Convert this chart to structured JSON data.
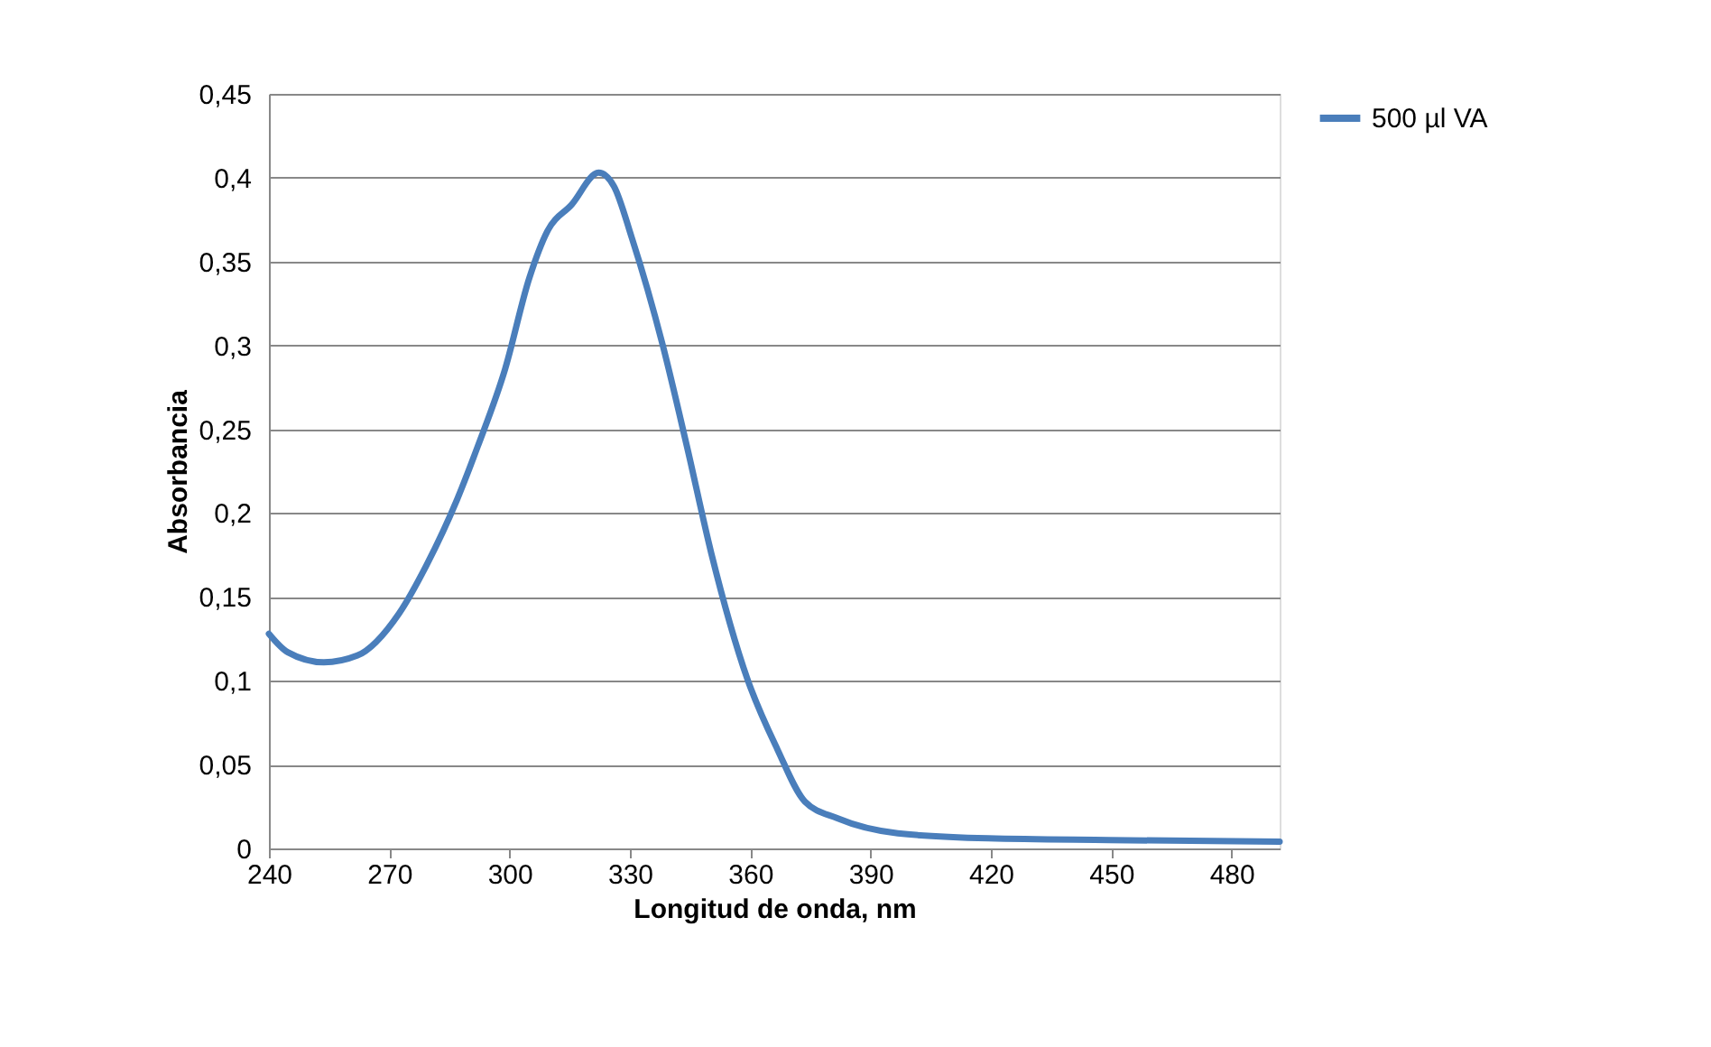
{
  "chart_data": {
    "type": "line",
    "xlabel": "Longitud de onda, nm",
    "ylabel": "Absorbancia",
    "xlim": [
      240,
      492
    ],
    "xticks": [
      240,
      270,
      300,
      330,
      360,
      390,
      420,
      450,
      480
    ],
    "ylim": [
      0,
      0.45
    ],
    "yticks": [
      {
        "value": 0,
        "label": "0"
      },
      {
        "value": 0.05,
        "label": "0,05"
      },
      {
        "value": 0.1,
        "label": "0,1"
      },
      {
        "value": 0.15,
        "label": "0,15"
      },
      {
        "value": 0.2,
        "label": "0,2"
      },
      {
        "value": 0.25,
        "label": "0,25"
      },
      {
        "value": 0.3,
        "label": "0,3"
      },
      {
        "value": 0.35,
        "label": "0,35"
      },
      {
        "value": 0.4,
        "label": "0,4"
      },
      {
        "value": 0.45,
        "label": "0,45"
      }
    ],
    "grid": "y",
    "legend": "right",
    "marker": "none",
    "line_style": "solid",
    "series": [
      {
        "name": "500 µl VA",
        "color": "#4a7ebb",
        "x": [
          240,
          244.7,
          253.7,
          262,
          272.4,
          279.3,
          286.9,
          292.1,
          298.9,
          304.9,
          309.4,
          315.5,
          322.2,
          326,
          330.5,
          338.2,
          344.2,
          350.3,
          359.3,
          366.8,
          373.6,
          381.7,
          396.8,
          419.4,
          449.5,
          492
        ],
        "values": [
          0.128,
          0.117,
          0.111,
          0.115,
          0.14,
          0.169,
          0.208,
          0.24,
          0.286,
          0.34,
          0.368,
          0.384,
          0.403,
          0.395,
          0.364,
          0.3,
          0.24,
          0.176,
          0.101,
          0.059,
          0.028,
          0.018,
          0.009,
          0.006,
          0.005,
          0.004
        ]
      }
    ]
  }
}
